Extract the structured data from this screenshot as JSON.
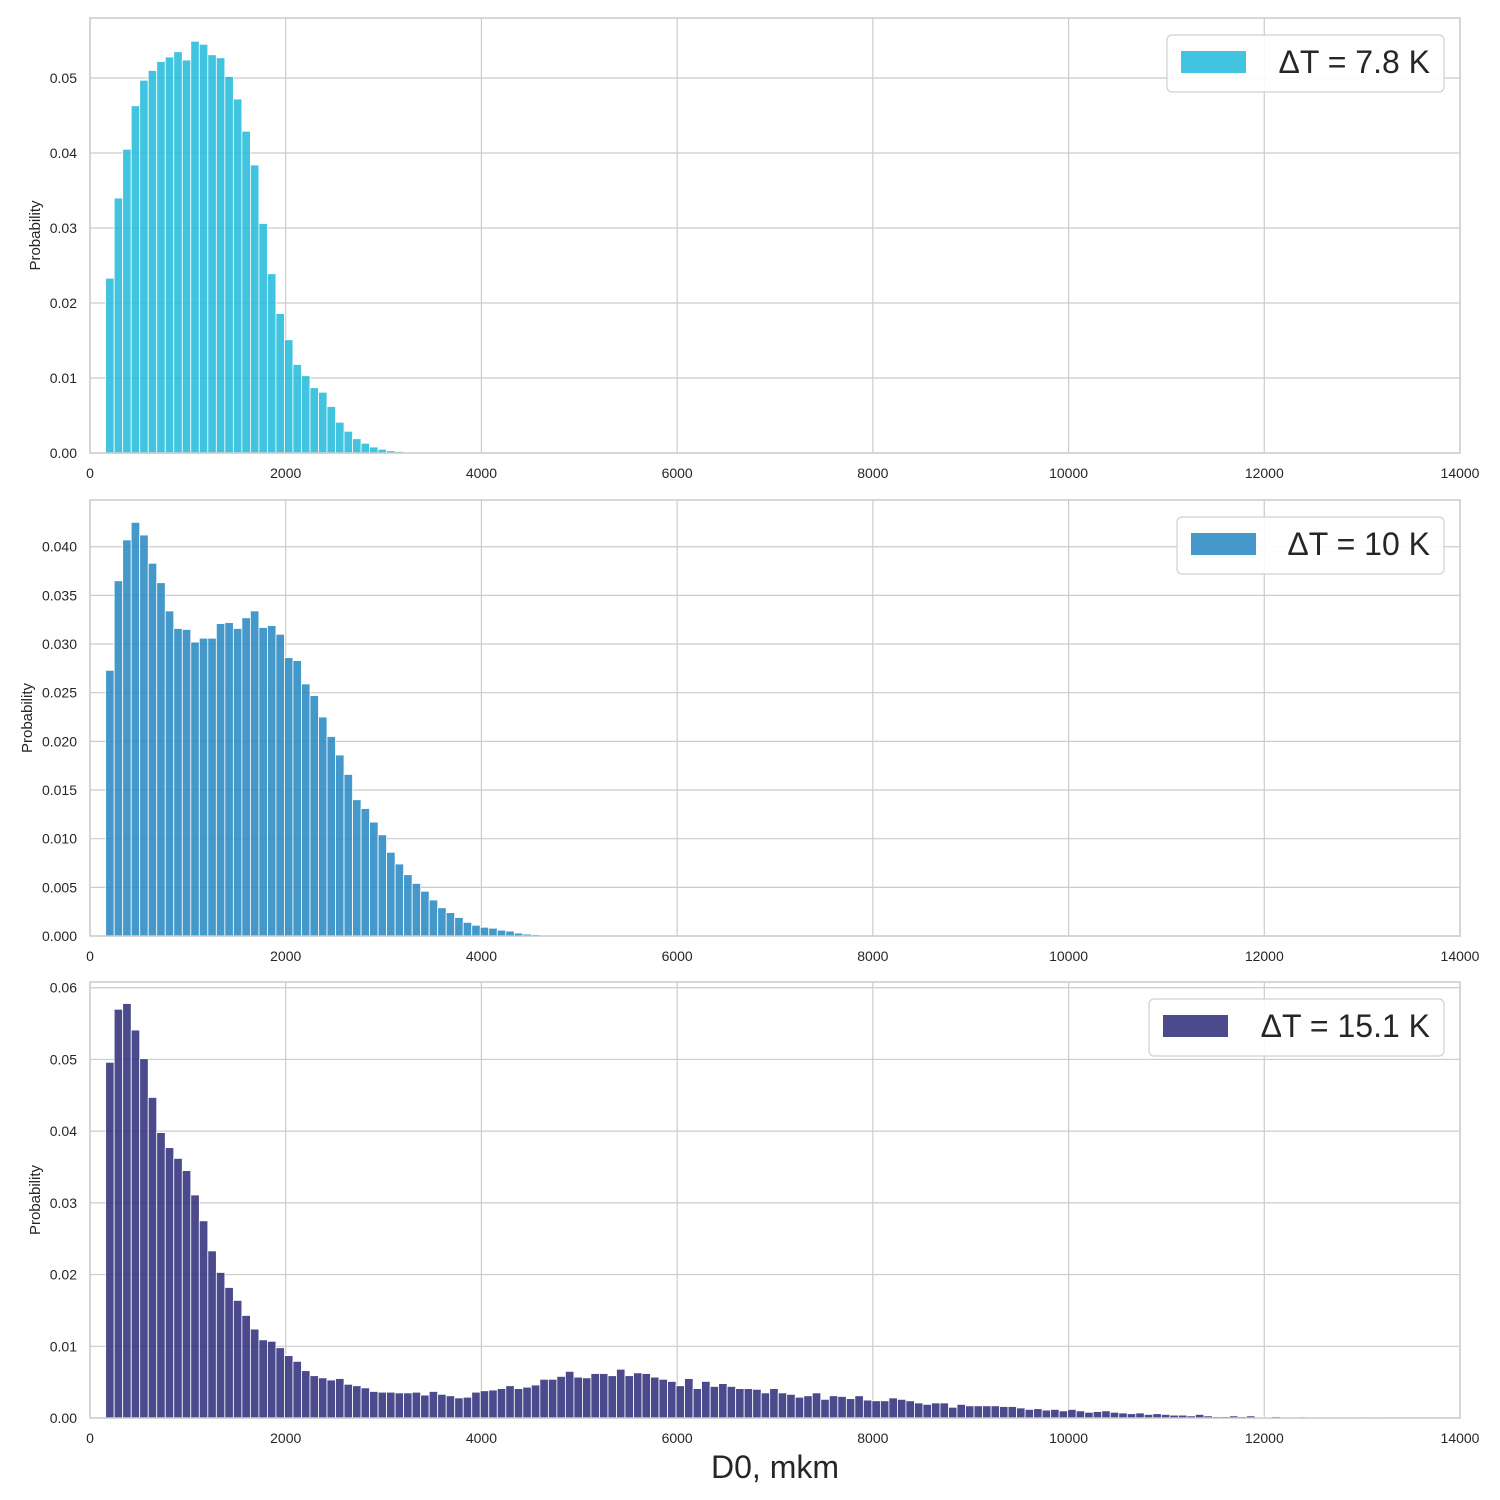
{
  "chart_data": [
    {
      "type": "bar",
      "title": "",
      "xlabel": "",
      "ylabel": "Probability",
      "xlim": [
        0,
        14000
      ],
      "ylim": [
        0,
        0.058
      ],
      "xticks": [
        0,
        2000,
        4000,
        6000,
        8000,
        10000,
        12000,
        14000
      ],
      "yticks": [
        "0.00",
        "0.01",
        "0.02",
        "0.03",
        "0.04",
        "0.05"
      ],
      "grid": true,
      "legend_position": "top-right",
      "bin_width": 87,
      "color": "#1fbad9",
      "series": [
        {
          "name": "ΔT = 7.8 K",
          "x_start": 160,
          "values": [
            0.0233,
            0.034,
            0.0405,
            0.0463,
            0.0497,
            0.051,
            0.0522,
            0.0528,
            0.0535,
            0.0524,
            0.0549,
            0.0545,
            0.0531,
            0.0527,
            0.0502,
            0.0472,
            0.0429,
            0.0384,
            0.0306,
            0.0239,
            0.0186,
            0.0151,
            0.0118,
            0.0103,
            0.0087,
            0.0081,
            0.0062,
            0.0041,
            0.0029,
            0.0019,
            0.0013,
            0.0008,
            0.0005,
            0.0003,
            0.0002,
            0.0001,
            5e-05,
            3e-05
          ]
        }
      ]
    },
    {
      "type": "bar",
      "title": "",
      "xlabel": "",
      "ylabel": "Probability",
      "xlim": [
        0,
        14000
      ],
      "ylim": [
        0,
        0.0448
      ],
      "xticks": [
        0,
        2000,
        4000,
        6000,
        8000,
        10000,
        12000,
        14000
      ],
      "yticks": [
        "0.000",
        "0.005",
        "0.010",
        "0.015",
        "0.020",
        "0.025",
        "0.030",
        "0.035",
        "0.040"
      ],
      "grid": true,
      "legend_position": "top-right",
      "bin_width": 87,
      "color": "#2586c1",
      "series": [
        {
          "name": "ΔT = 10 K",
          "x_start": 160,
          "values": [
            0.0273,
            0.0365,
            0.0407,
            0.0425,
            0.0412,
            0.0383,
            0.0363,
            0.0334,
            0.0316,
            0.0315,
            0.0302,
            0.0306,
            0.0306,
            0.0321,
            0.0322,
            0.0316,
            0.0327,
            0.0334,
            0.0317,
            0.0319,
            0.031,
            0.0286,
            0.0283,
            0.0259,
            0.0247,
            0.0225,
            0.0205,
            0.0186,
            0.0166,
            0.014,
            0.0131,
            0.0117,
            0.0104,
            0.0086,
            0.0074,
            0.0063,
            0.0054,
            0.0046,
            0.0037,
            0.0029,
            0.0024,
            0.0019,
            0.0014,
            0.0011,
            0.0009,
            0.0008,
            0.0006,
            0.0005,
            0.0003,
            0.0002,
            0.00015,
            0.0001,
            8e-05,
            5e-05,
            4e-05,
            2e-05
          ]
        }
      ]
    },
    {
      "type": "bar",
      "title": "",
      "xlabel": "D0, mkm",
      "ylabel": "Probability",
      "xlim": [
        0,
        14000
      ],
      "ylim": [
        0,
        0.0608
      ],
      "xticks": [
        0,
        2000,
        4000,
        6000,
        8000,
        10000,
        12000,
        14000
      ],
      "yticks": [
        "0.00",
        "0.01",
        "0.02",
        "0.03",
        "0.04",
        "0.05",
        "0.06"
      ],
      "grid": true,
      "legend_position": "top-right",
      "bin_width": 87,
      "color": "#2a2a78",
      "series": [
        {
          "name": "ΔT = 15.1 K",
          "x_start": 160,
          "values": [
            0.0496,
            0.057,
            0.0578,
            0.0541,
            0.0501,
            0.0447,
            0.0398,
            0.0377,
            0.0362,
            0.0345,
            0.0311,
            0.0275,
            0.0233,
            0.0203,
            0.0182,
            0.0164,
            0.0143,
            0.0124,
            0.0109,
            0.0107,
            0.0098,
            0.0087,
            0.0079,
            0.0066,
            0.0059,
            0.0056,
            0.0053,
            0.0055,
            0.0047,
            0.0045,
            0.0042,
            0.0037,
            0.0036,
            0.0036,
            0.0035,
            0.0035,
            0.0036,
            0.0032,
            0.0037,
            0.0033,
            0.0031,
            0.0028,
            0.0029,
            0.0036,
            0.0038,
            0.0039,
            0.0041,
            0.0045,
            0.0041,
            0.0043,
            0.0046,
            0.0054,
            0.0054,
            0.0058,
            0.0065,
            0.0057,
            0.0056,
            0.0062,
            0.0062,
            0.0059,
            0.0068,
            0.0059,
            0.0063,
            0.0062,
            0.0057,
            0.0054,
            0.0051,
            0.0045,
            0.0055,
            0.0041,
            0.0051,
            0.0044,
            0.0048,
            0.0044,
            0.0041,
            0.0041,
            0.004,
            0.0035,
            0.0041,
            0.0035,
            0.0033,
            0.0029,
            0.0031,
            0.0035,
            0.0026,
            0.0031,
            0.003,
            0.0027,
            0.0031,
            0.0025,
            0.0024,
            0.0024,
            0.0028,
            0.0026,
            0.0024,
            0.0021,
            0.0019,
            0.0021,
            0.0021,
            0.0015,
            0.0019,
            0.0017,
            0.0017,
            0.0017,
            0.0017,
            0.0016,
            0.0016,
            0.0014,
            0.0012,
            0.0013,
            0.0011,
            0.0012,
            0.001,
            0.0012,
            0.001,
            0.0008,
            0.0009,
            0.001,
            0.0008,
            0.0007,
            0.0006,
            0.0007,
            0.0005,
            0.0006,
            0.0005,
            0.0004,
            0.0004,
            0.0003,
            0.0005,
            0.0003,
            0.0002,
            0.0002,
            0.0003,
            0.0002,
            0.0003,
            0.0001,
            0.0001,
            0.0002,
            0.0001,
            0.0001,
            0.00015,
            0.0001,
            0.0001,
            5e-05,
            0.0001,
            5e-05,
            8e-05,
            3e-05,
            3e-05,
            0.0001,
            2e-05,
            2e-05,
            2e-05,
            2e-05
          ]
        }
      ]
    }
  ]
}
